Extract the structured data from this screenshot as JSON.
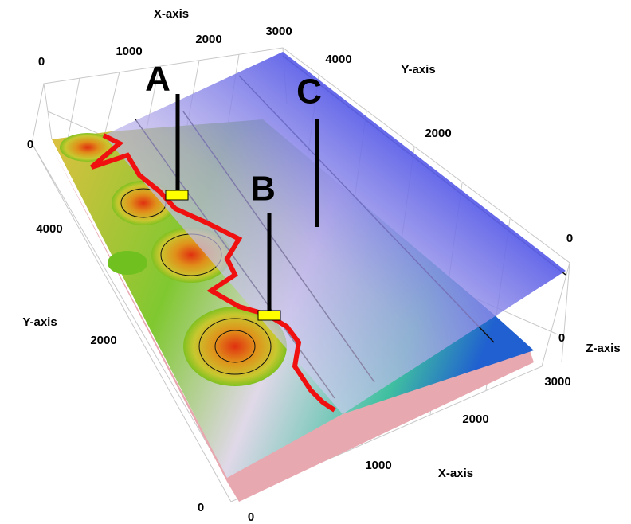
{
  "top_x_axis": {
    "title": "X-axis",
    "ticks": [
      "0",
      "1000",
      "2000",
      "3000"
    ]
  },
  "top_y_axis": {
    "title": "Y-axis",
    "ticks": [
      "4000",
      "2000"
    ]
  },
  "left_y_axis": {
    "title": "Y-axis",
    "ticks": [
      "0",
      "4000",
      "2000",
      "0"
    ]
  },
  "z_axis": {
    "title": "Z-axis",
    "ticks": [
      "0",
      "0",
      "3000"
    ]
  },
  "bottom_x_axis": {
    "title": "X-axis",
    "ticks": [
      "2000",
      "1000",
      "0"
    ]
  },
  "markers": [
    "A",
    "B",
    "C"
  ]
}
